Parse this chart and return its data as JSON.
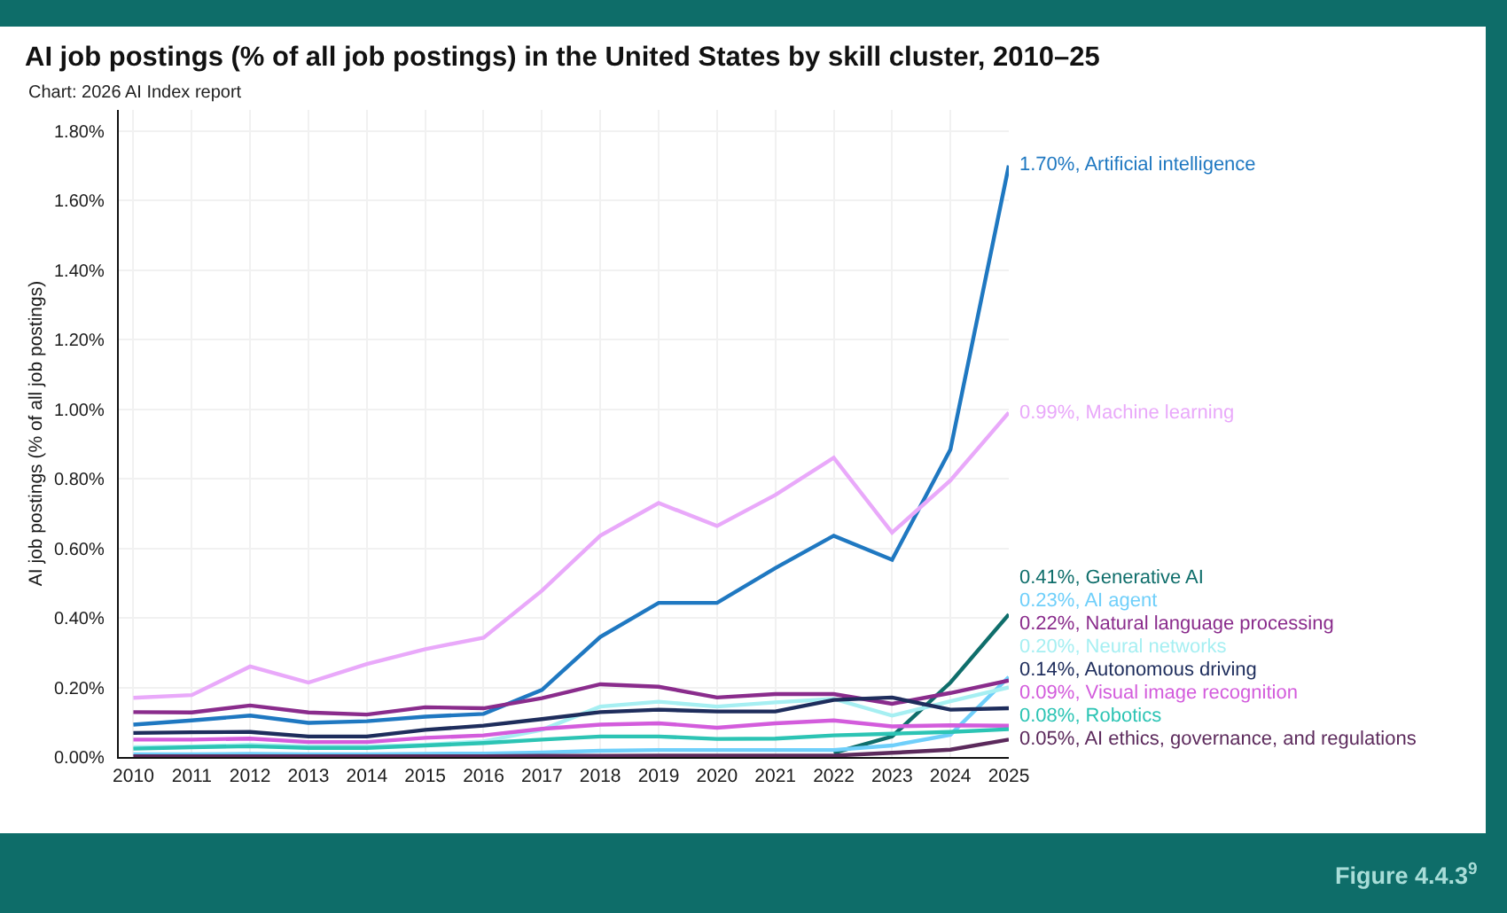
{
  "chart_data": {
    "type": "line",
    "title": "AI job postings (% of all job postings) in the United States by skill cluster, 2010–25",
    "subtitle": "Chart: 2026 AI Index report",
    "ylabel": "AI job postings (% of all job postings)",
    "annotations": [
      "Figure 4.4.3$^{9}$"
    ],
    "x": [
      2010,
      2011,
      2012,
      2013,
      2014,
      2015,
      2016,
      2017,
      2018,
      2019,
      2020,
      2021,
      2022,
      2023,
      2024,
      2025
    ],
    "xlim": [
      2009.75,
      2025
    ],
    "xticks": [
      2010,
      2011,
      2012,
      2013,
      2014,
      2015,
      2016,
      2017,
      2018,
      2019,
      2020,
      2021,
      2022,
      2023,
      2024,
      2025
    ],
    "ylim": [
      0,
      1.86
    ],
    "yticks": [
      {
        "value": 0,
        "label": "0.00%"
      },
      {
        "value": 0.2,
        "label": "0.20%"
      },
      {
        "value": 0.4,
        "label": "0.40%"
      },
      {
        "value": 0.6,
        "label": "0.60%"
      },
      {
        "value": 0.8,
        "label": "0.80%"
      },
      {
        "value": 1.0,
        "label": "1.00%"
      },
      {
        "value": 1.2,
        "label": "1.20%"
      },
      {
        "value": 1.4,
        "label": "1.40%"
      },
      {
        "value": 1.6,
        "label": "1.60%"
      },
      {
        "value": 1.8,
        "label": "1.80%"
      }
    ],
    "grid": true,
    "series": [
      {
        "name": "Artificial intelligence",
        "color": "#1f78c1",
        "values": [
          0.093,
          0.105,
          0.119,
          0.098,
          0.103,
          0.116,
          0.124,
          0.193,
          0.345,
          0.443,
          0.443,
          0.543,
          0.636,
          0.567,
          0.884,
          1.7
        ],
        "value_labels": [
          null,
          null,
          null,
          null,
          null,
          null,
          null,
          null,
          null,
          null,
          null,
          null,
          null,
          null,
          null,
          "1.70%,"
        ]
      },
      {
        "name": "Machine learning",
        "color": "#e9a9fa",
        "values": [
          0.17,
          0.178,
          0.26,
          0.214,
          0.267,
          0.31,
          0.343,
          0.478,
          0.636,
          0.73,
          0.664,
          0.753,
          0.86,
          0.645,
          0.795,
          0.99
        ],
        "value_labels": [
          null,
          null,
          null,
          null,
          null,
          null,
          null,
          null,
          null,
          null,
          null,
          null,
          null,
          null,
          null,
          "0.99%,"
        ]
      },
      {
        "name": "Generative AI",
        "color": "#0f6e6b",
        "values": [
          null,
          null,
          null,
          null,
          null,
          null,
          null,
          null,
          null,
          null,
          null,
          null,
          0.012,
          0.059,
          0.214,
          0.41
        ],
        "value_labels": [
          null,
          null,
          null,
          null,
          null,
          null,
          null,
          null,
          null,
          null,
          null,
          null,
          null,
          null,
          null,
          "0.41%,"
        ]
      },
      {
        "name": "AI agent",
        "color": "#6fcffa",
        "values": [
          0.008,
          0.008,
          0.009,
          0.008,
          0.008,
          0.009,
          0.01,
          0.013,
          0.018,
          0.02,
          0.02,
          0.02,
          0.02,
          0.033,
          0.064,
          0.23
        ],
        "value_labels": [
          null,
          null,
          null,
          null,
          null,
          null,
          null,
          null,
          null,
          null,
          null,
          null,
          null,
          null,
          null,
          "0.23%,"
        ]
      },
      {
        "name": "Natural language processing",
        "color": "#8a2c8c",
        "values": [
          0.129,
          0.128,
          0.148,
          0.128,
          0.122,
          0.143,
          0.14,
          0.169,
          0.209,
          0.202,
          0.171,
          0.181,
          0.181,
          0.153,
          0.184,
          0.22
        ],
        "value_labels": [
          null,
          null,
          null,
          null,
          null,
          null,
          null,
          null,
          null,
          null,
          null,
          null,
          null,
          null,
          null,
          "0.22%,"
        ]
      },
      {
        "name": "Neural networks",
        "color": "#a6eff2",
        "values": [
          0.028,
          0.03,
          0.035,
          0.03,
          0.03,
          0.035,
          0.045,
          0.078,
          0.145,
          0.159,
          0.145,
          0.157,
          0.167,
          0.119,
          0.16,
          0.2
        ],
        "value_labels": [
          null,
          null,
          null,
          null,
          null,
          null,
          null,
          null,
          null,
          null,
          null,
          null,
          null,
          null,
          null,
          "0.20%,"
        ]
      },
      {
        "name": "Autonomous driving",
        "color": "#1e2d5c",
        "values": [
          0.069,
          0.071,
          0.072,
          0.059,
          0.059,
          0.078,
          0.09,
          0.109,
          0.129,
          0.136,
          0.131,
          0.131,
          0.164,
          0.171,
          0.136,
          0.14
        ],
        "value_labels": [
          null,
          null,
          null,
          null,
          null,
          null,
          null,
          null,
          null,
          null,
          null,
          null,
          null,
          null,
          null,
          "0.14%,"
        ]
      },
      {
        "name": "Visual image recognition",
        "color": "#d35cdc",
        "values": [
          0.05,
          0.05,
          0.053,
          0.043,
          0.043,
          0.055,
          0.062,
          0.081,
          0.093,
          0.097,
          0.084,
          0.097,
          0.105,
          0.088,
          0.091,
          0.09
        ],
        "value_labels": [
          null,
          null,
          null,
          null,
          null,
          null,
          null,
          null,
          null,
          null,
          null,
          null,
          null,
          null,
          null,
          "0.09%,"
        ]
      },
      {
        "name": "Robotics",
        "color": "#2cc4b4",
        "values": [
          0.024,
          0.028,
          0.031,
          0.026,
          0.026,
          0.033,
          0.04,
          0.05,
          0.059,
          0.059,
          0.052,
          0.053,
          0.062,
          0.067,
          0.072,
          0.08
        ],
        "value_labels": [
          null,
          null,
          null,
          null,
          null,
          null,
          null,
          null,
          null,
          null,
          null,
          null,
          null,
          null,
          null,
          "0.08%,"
        ]
      },
      {
        "name": "AI ethics, governance, and regulations",
        "color": "#5c2a5c",
        "values": [
          0.002,
          0.002,
          0.002,
          0.002,
          0.002,
          0.002,
          0.002,
          0.003,
          0.003,
          0.004,
          0.004,
          0.004,
          0.004,
          0.012,
          0.021,
          0.05
        ],
        "value_labels": [
          null,
          null,
          null,
          null,
          null,
          null,
          null,
          null,
          null,
          null,
          null,
          null,
          null,
          null,
          null,
          "0.05%,"
        ]
      }
    ]
  }
}
